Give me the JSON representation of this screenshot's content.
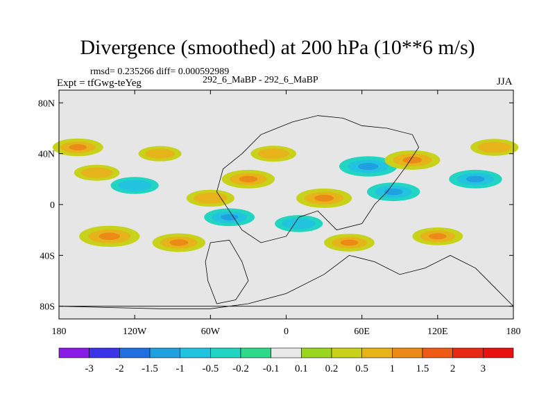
{
  "chart_data": {
    "type": "heatmap",
    "title": "Divergence (smoothed) at 200 hPa (10**6 m/s)",
    "stats_text": "rmsd= 0.235266 diff= 0.000592989",
    "experiment_text": "Expt = tfGwg-teYeg",
    "case_text": "292_6_MaBP - 292_6_MaBP",
    "season": "JJA",
    "projection": "cylindrical equidistant, paleo continents",
    "x_axis": {
      "range": [
        -180,
        180
      ],
      "ticks": [
        -180,
        -120,
        -60,
        0,
        60,
        120,
        180
      ],
      "tick_labels": [
        "180",
        "120W",
        "60W",
        "0",
        "60E",
        "120E",
        "180"
      ]
    },
    "y_axis": {
      "range": [
        -90,
        90
      ],
      "ticks": [
        80,
        40,
        0,
        -40,
        -80
      ],
      "tick_labels": [
        "80N",
        "40N",
        "0",
        "40S",
        "80S"
      ]
    },
    "colorbar": {
      "levels": [
        "-3",
        "-2",
        "-1.5",
        "-1",
        "-0.5",
        "-0.2",
        "-0.1",
        "0.1",
        "0.2",
        "0.5",
        "1",
        "1.5",
        "2",
        "3"
      ],
      "colors": [
        "#8a1be6",
        "#3a33e8",
        "#1f6fe0",
        "#1fa0e0",
        "#22c3de",
        "#22d4c2",
        "#2ed98a",
        "#e8e8e8",
        "#9ad61f",
        "#c8d21a",
        "#e6b41a",
        "#ec8a17",
        "#ee5a14",
        "#e82a12",
        "#e81010"
      ]
    },
    "features": [
      {
        "lon": -165,
        "lat": 45,
        "sign": 1,
        "amp": 0.8
      },
      {
        "lon": -150,
        "lat": 25,
        "sign": 1,
        "amp": 0.6
      },
      {
        "lon": -140,
        "lat": -25,
        "sign": 1,
        "amp": 1.2
      },
      {
        "lon": -120,
        "lat": 15,
        "sign": -1,
        "amp": 0.7
      },
      {
        "lon": -100,
        "lat": 40,
        "sign": 1,
        "amp": 0.5
      },
      {
        "lon": -85,
        "lat": -30,
        "sign": 1,
        "amp": 0.9
      },
      {
        "lon": -60,
        "lat": 5,
        "sign": 1,
        "amp": 0.7
      },
      {
        "lon": -45,
        "lat": -10,
        "sign": -1,
        "amp": 0.8
      },
      {
        "lon": -30,
        "lat": 20,
        "sign": 1,
        "amp": 0.9
      },
      {
        "lon": -10,
        "lat": 40,
        "sign": 1,
        "amp": 0.6
      },
      {
        "lon": 10,
        "lat": -15,
        "sign": -1,
        "amp": 0.7
      },
      {
        "lon": 30,
        "lat": 5,
        "sign": 1,
        "amp": 1.0
      },
      {
        "lon": 50,
        "lat": -30,
        "sign": 1,
        "amp": 0.8
      },
      {
        "lon": 65,
        "lat": 30,
        "sign": -1,
        "amp": 1.1
      },
      {
        "lon": 85,
        "lat": 10,
        "sign": -1,
        "amp": 0.9
      },
      {
        "lon": 100,
        "lat": 35,
        "sign": 1,
        "amp": 1.0
      },
      {
        "lon": 120,
        "lat": -25,
        "sign": 1,
        "amp": 0.8
      },
      {
        "lon": 150,
        "lat": 20,
        "sign": -1,
        "amp": 0.9
      },
      {
        "lon": 165,
        "lat": 45,
        "sign": 1,
        "amp": 0.7
      }
    ]
  }
}
